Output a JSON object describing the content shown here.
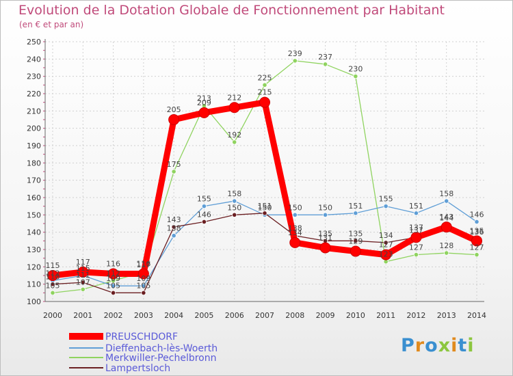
{
  "chart_data": {
    "type": "line",
    "title": "Evolution de la Dotation Globale de Fonctionnement par Habitant",
    "subtitle": "(en € et par an)",
    "xlabel": "",
    "ylabel": "",
    "ylim": [
      100,
      250
    ],
    "ystep": 10,
    "grid": true,
    "legend": "bottom-left",
    "x": [
      "2000",
      "2001",
      "2002",
      "2003",
      "2004",
      "2005",
      "2006",
      "2007",
      "2008",
      "2009",
      "2010",
      "2011",
      "2012",
      "2013",
      "2014"
    ],
    "series": [
      {
        "name": "PREUSCHDORF",
        "color": "#ff0000",
        "values": [
          115,
          117,
          116,
          116,
          205,
          209,
          212,
          215,
          134,
          131,
          129,
          127,
          137,
          143,
          135
        ],
        "labels": [
          "115",
          "117",
          "116",
          "116",
          "205",
          "209",
          "212",
          "215",
          "134",
          "131",
          "129",
          "127",
          "137",
          "143",
          "135"
        ]
      },
      {
        "name": "Dieffenbach-lès-Woerth",
        "color": "#5f9ed6",
        "values": [
          112,
          115,
          109,
          109,
          138,
          155,
          158,
          150,
          150,
          150,
          151,
          155,
          151,
          158,
          146
        ],
        "labels": [
          "112",
          "115",
          "109",
          "109",
          "138",
          "155",
          "158",
          "150",
          "150",
          "150",
          "151",
          "155",
          "151",
          "158",
          "146"
        ]
      },
      {
        "name": "Merkwiller-Pechelbronn",
        "color": "#8fd35f",
        "values": [
          105,
          107,
          112,
          117,
          175,
          213,
          192,
          225,
          239,
          237,
          230,
          123,
          127,
          128,
          127
        ],
        "labels": [
          "105",
          "107",
          "112",
          "117",
          "175",
          "213",
          "192",
          "225",
          "239",
          "237",
          "230",
          "123",
          "127",
          "128",
          "127"
        ]
      },
      {
        "name": "Lampertsloch",
        "color": "#6b1f22",
        "values": [
          110,
          111,
          105,
          105,
          143,
          146,
          150,
          151,
          138,
          135,
          135,
          134,
          137,
          144,
          136
        ],
        "labels": [
          "110",
          "111",
          "105",
          "105",
          "143",
          "146",
          "150",
          "151",
          "138",
          "135",
          "135",
          "134",
          "137",
          "144",
          "136"
        ]
      }
    ]
  },
  "logo": {
    "text": "Proxiti"
  }
}
